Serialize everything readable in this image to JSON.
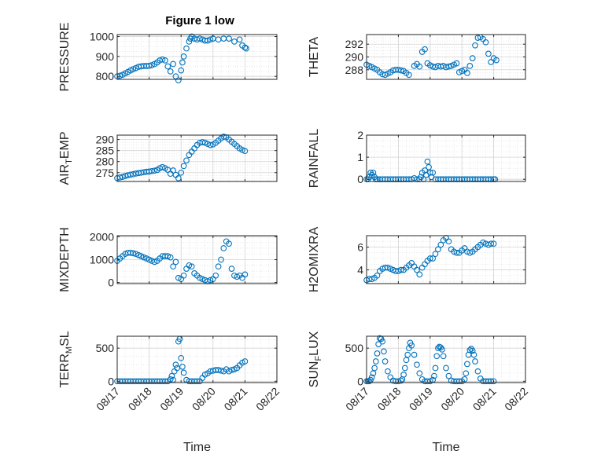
{
  "figure": {
    "title": "Figure 1 low",
    "marker_color": "#0072bd",
    "axis_color": "#262626",
    "grid_color": "#dfdfdf"
  },
  "chart_data": [
    {
      "type": "scatter",
      "id": "pressure",
      "title": "Figure 1 low",
      "ylabel": "PRESSURE",
      "ylabel_sub": "",
      "xlabel": "",
      "ylim": [
        785,
        1010
      ],
      "yticks": [
        800,
        900,
        1000
      ],
      "xticklabels_visible": false,
      "x": [
        "08/17 00:00",
        "08/17 02:00",
        "08/17 04:00",
        "08/17 06:00",
        "08/17 08:00",
        "08/17 10:00",
        "08/17 12:00",
        "08/17 14:00",
        "08/17 16:00",
        "08/17 18:00",
        "08/17 20:00",
        "08/17 22:00",
        "08/18 00:00",
        "08/18 02:00",
        "08/18 04:00",
        "08/18 06:00",
        "08/18 08:00",
        "08/18 10:00",
        "08/18 12:00",
        "08/18 14:00",
        "08/18 16:00",
        "08/18 18:00",
        "08/18 20:00",
        "08/18 22:00",
        "08/19 00:00",
        "08/19 01:00",
        "08/19 02:00",
        "08/19 04:00",
        "08/19 06:00",
        "08/19 07:00",
        "08/19 08:00",
        "08/19 10:00",
        "08/19 12:00",
        "08/19 14:00",
        "08/19 16:00",
        "08/19 18:00",
        "08/19 20:00",
        "08/19 22:00",
        "08/20 00:00",
        "08/20 04:00",
        "08/20 08:00",
        "08/20 12:00",
        "08/20 16:00",
        "08/20 20:00",
        "08/20 22:00",
        "08/21 00:00",
        "08/21 01:00"
      ],
      "values": [
        800,
        803,
        808,
        815,
        822,
        830,
        836,
        842,
        848,
        850,
        852,
        852,
        853,
        856,
        862,
        870,
        880,
        885,
        880,
        850,
        825,
        862,
        800,
        780,
        830,
        870,
        900,
        940,
        975,
        990,
        1000,
        990,
        985,
        990,
        985,
        980,
        980,
        985,
        990,
        985,
        990,
        990,
        975,
        985,
        955,
        945,
        940
      ]
    },
    {
      "type": "scatter",
      "id": "theta",
      "title": "",
      "ylabel": "THETA",
      "ylabel_sub": "",
      "xlabel": "",
      "ylim": [
        286.5,
        293.5
      ],
      "yticks": [
        288,
        290,
        292
      ],
      "xticklabels_visible": false,
      "x": [
        "08/17 00:00",
        "08/17 02:00",
        "08/17 04:00",
        "08/17 06:00",
        "08/17 08:00",
        "08/17 10:00",
        "08/17 12:00",
        "08/17 14:00",
        "08/17 16:00",
        "08/17 18:00",
        "08/17 20:00",
        "08/17 22:00",
        "08/18 00:00",
        "08/18 02:00",
        "08/18 04:00",
        "08/18 06:00",
        "08/18 08:00",
        "08/18 12:00",
        "08/18 14:00",
        "08/18 16:00",
        "08/18 18:00",
        "08/18 20:00",
        "08/18 22:00",
        "08/19 00:00",
        "08/19 02:00",
        "08/19 04:00",
        "08/19 06:00",
        "08/19 08:00",
        "08/19 10:00",
        "08/19 12:00",
        "08/19 14:00",
        "08/19 16:00",
        "08/19 18:00",
        "08/19 20:00",
        "08/19 22:00",
        "08/20 00:00",
        "08/20 02:00",
        "08/20 04:00",
        "08/20 06:00",
        "08/20 08:00",
        "08/20 10:00",
        "08/20 12:00",
        "08/20 14:00",
        "08/20 16:00",
        "08/20 18:00",
        "08/20 20:00",
        "08/20 22:00",
        "08/21 00:00",
        "08/21 02:00"
      ],
      "values": [
        288.8,
        288.6,
        288.4,
        288.2,
        288.0,
        287.6,
        287.3,
        287.2,
        287.4,
        287.6,
        287.9,
        288.0,
        288.0,
        287.9,
        287.8,
        287.5,
        287.2,
        288.6,
        288.9,
        288.5,
        290.8,
        291.2,
        289.0,
        288.7,
        288.5,
        288.4,
        288.6,
        288.5,
        288.6,
        288.4,
        288.5,
        288.6,
        288.8,
        289.0,
        287.6,
        287.8,
        288.0,
        287.5,
        288.6,
        289.8,
        291.8,
        293.0,
        293.1,
        292.8,
        292.3,
        290.5,
        289.2,
        289.8,
        289.5
      ]
    },
    {
      "type": "scatter",
      "id": "air_temp",
      "title": "",
      "ylabel": "AIR",
      "ylabel_sub": "T",
      "ylabel_tail": "EMP",
      "xlabel": "",
      "ylim": [
        271,
        292
      ],
      "yticks": [
        275,
        280,
        285,
        290
      ],
      "xticklabels_visible": false,
      "x": [
        "08/17 00:00",
        "08/17 02:00",
        "08/17 04:00",
        "08/17 06:00",
        "08/17 08:00",
        "08/17 10:00",
        "08/17 12:00",
        "08/17 14:00",
        "08/17 16:00",
        "08/17 18:00",
        "08/17 20:00",
        "08/17 22:00",
        "08/18 00:00",
        "08/18 02:00",
        "08/18 04:00",
        "08/18 06:00",
        "08/18 08:00",
        "08/18 10:00",
        "08/18 12:00",
        "08/18 14:00",
        "08/18 16:00",
        "08/18 18:00",
        "08/18 20:00",
        "08/18 22:00",
        "08/19 00:00",
        "08/19 02:00",
        "08/19 04:00",
        "08/19 06:00",
        "08/19 08:00",
        "08/19 10:00",
        "08/19 12:00",
        "08/19 14:00",
        "08/19 16:00",
        "08/19 18:00",
        "08/19 20:00",
        "08/19 22:00",
        "08/20 00:00",
        "08/20 02:00",
        "08/20 04:00",
        "08/20 06:00",
        "08/20 08:00",
        "08/20 10:00",
        "08/20 12:00",
        "08/20 14:00",
        "08/20 16:00",
        "08/20 18:00",
        "08/20 20:00",
        "08/20 22:00",
        "08/21 00:00"
      ],
      "values": [
        272.5,
        272.8,
        273.1,
        273.5,
        273.8,
        274.1,
        274.3,
        274.6,
        274.8,
        275.0,
        275.2,
        275.4,
        275.5,
        275.7,
        275.9,
        276.2,
        277.0,
        277.5,
        277.0,
        276.3,
        274.5,
        276.0,
        274.0,
        272.5,
        275.0,
        278.0,
        280.5,
        283.0,
        284.5,
        286.0,
        287.5,
        288.5,
        288.8,
        288.6,
        288.0,
        287.5,
        287.8,
        288.5,
        289.5,
        290.5,
        291.3,
        291.0,
        290.0,
        289.0,
        288.0,
        287.0,
        286.0,
        285.3,
        284.8
      ]
    },
    {
      "type": "scatter",
      "id": "rainfall",
      "title": "",
      "ylabel": "RAINFALL",
      "ylabel_sub": "",
      "xlabel": "",
      "ylim": [
        -0.1,
        2.0
      ],
      "yticks": [
        0,
        1,
        2
      ],
      "xticklabels_visible": false,
      "x": [
        "08/17 00:00",
        "08/17 01:00",
        "08/17 02:00",
        "08/17 03:00",
        "08/17 04:00",
        "08/17 05:00",
        "08/17 06:00",
        "08/17 07:00",
        "08/17 08:00",
        "08/17 10:00",
        "08/17 12:00",
        "08/17 14:00",
        "08/17 16:00",
        "08/17 18:00",
        "08/17 20:00",
        "08/17 22:00",
        "08/18 00:00",
        "08/18 02:00",
        "08/18 04:00",
        "08/18 06:00",
        "08/18 08:00",
        "08/18 10:00",
        "08/18 12:00",
        "08/18 14:00",
        "08/18 16:00",
        "08/18 17:00",
        "08/18 18:00",
        "08/18 19:00",
        "08/18 20:00",
        "08/18 21:00",
        "08/18 22:00",
        "08/18 23:00",
        "08/19 00:00",
        "08/19 01:00",
        "08/19 02:00",
        "08/19 04:00",
        "08/19 06:00",
        "08/19 08:00",
        "08/19 10:00",
        "08/19 12:00",
        "08/19 14:00",
        "08/19 16:00",
        "08/19 18:00",
        "08/19 20:00",
        "08/19 22:00",
        "08/20 00:00",
        "08/20 02:00",
        "08/20 04:00",
        "08/20 06:00",
        "08/20 08:00",
        "08/20 10:00",
        "08/20 12:00",
        "08/20 14:00",
        "08/20 16:00",
        "08/20 18:00",
        "08/20 20:00",
        "08/20 22:00",
        "08/21 00:00",
        "08/21 01:00"
      ],
      "values": [
        0,
        0,
        0.1,
        0.3,
        0.2,
        0.3,
        0.1,
        0,
        0,
        0,
        0,
        0,
        0,
        0,
        0,
        0,
        0,
        0,
        0,
        0,
        0,
        0,
        0.05,
        0,
        0,
        0.1,
        0.3,
        0,
        0.4,
        0.2,
        0.8,
        0.55,
        0.3,
        0.1,
        0.3,
        0,
        0,
        0,
        0,
        0,
        0,
        0,
        0,
        0,
        0,
        0,
        0,
        0,
        0,
        0,
        0,
        0,
        0,
        0,
        0,
        0,
        0,
        0,
        0
      ]
    },
    {
      "type": "scatter",
      "id": "mixdepth",
      "title": "",
      "ylabel": "MIXDEPTH",
      "ylabel_sub": "",
      "xlabel": "",
      "ylim": [
        -50,
        2050
      ],
      "yticks": [
        0,
        1000,
        2000
      ],
      "xticklabels_visible": false,
      "x": [
        "08/17 00:00",
        "08/17 02:00",
        "08/17 04:00",
        "08/17 06:00",
        "08/17 08:00",
        "08/17 10:00",
        "08/17 12:00",
        "08/17 14:00",
        "08/17 16:00",
        "08/17 18:00",
        "08/17 20:00",
        "08/17 22:00",
        "08/18 00:00",
        "08/18 02:00",
        "08/18 04:00",
        "08/18 06:00",
        "08/18 08:00",
        "08/18 10:00",
        "08/18 12:00",
        "08/18 14:00",
        "08/18 16:00",
        "08/18 18:00",
        "08/18 20:00",
        "08/18 22:00",
        "08/19 00:00",
        "08/19 02:00",
        "08/19 04:00",
        "08/19 06:00",
        "08/19 08:00",
        "08/19 10:00",
        "08/19 12:00",
        "08/19 14:00",
        "08/19 16:00",
        "08/19 18:00",
        "08/19 20:00",
        "08/19 22:00",
        "08/20 00:00",
        "08/20 02:00",
        "08/20 04:00",
        "08/20 06:00",
        "08/20 08:00",
        "08/20 10:00",
        "08/20 12:00",
        "08/20 14:00",
        "08/20 16:00",
        "08/20 18:00",
        "08/20 20:00",
        "08/20 22:00",
        "08/21 00:00"
      ],
      "values": [
        950,
        1050,
        1150,
        1250,
        1300,
        1300,
        1280,
        1250,
        1200,
        1150,
        1100,
        1050,
        1000,
        950,
        900,
        950,
        1050,
        1150,
        1150,
        1150,
        1100,
        700,
        900,
        200,
        150,
        300,
        600,
        750,
        700,
        400,
        300,
        200,
        150,
        100,
        50,
        100,
        150,
        300,
        700,
        1000,
        1500,
        1800,
        1700,
        600,
        300,
        250,
        300,
        200,
        350
      ]
    },
    {
      "type": "scatter",
      "id": "h2omixra",
      "title": "",
      "ylabel": "H2OMIXRA",
      "ylabel_sub": "",
      "xlabel": "",
      "ylim": [
        2.8,
        7.0
      ],
      "yticks": [
        4,
        6
      ],
      "xticklabels_visible": false,
      "x": [
        "08/17 00:00",
        "08/17 02:00",
        "08/17 04:00",
        "08/17 06:00",
        "08/17 08:00",
        "08/17 10:00",
        "08/17 12:00",
        "08/17 14:00",
        "08/17 16:00",
        "08/17 18:00",
        "08/17 20:00",
        "08/17 22:00",
        "08/18 00:00",
        "08/18 02:00",
        "08/18 04:00",
        "08/18 06:00",
        "08/18 08:00",
        "08/18 10:00",
        "08/18 12:00",
        "08/18 14:00",
        "08/18 16:00",
        "08/18 18:00",
        "08/18 20:00",
        "08/18 22:00",
        "08/19 00:00",
        "08/19 02:00",
        "08/19 04:00",
        "08/19 06:00",
        "08/19 08:00",
        "08/19 10:00",
        "08/19 12:00",
        "08/19 14:00",
        "08/19 16:00",
        "08/19 18:00",
        "08/19 20:00",
        "08/19 22:00",
        "08/20 00:00",
        "08/20 02:00",
        "08/20 04:00",
        "08/20 06:00",
        "08/20 08:00",
        "08/20 10:00",
        "08/20 12:00",
        "08/20 14:00",
        "08/20 16:00",
        "08/20 18:00",
        "08/20 20:00",
        "08/20 22:00",
        "08/21 00:00"
      ],
      "values": [
        3.1,
        3.2,
        3.2,
        3.3,
        3.5,
        3.9,
        4.1,
        4.2,
        4.2,
        4.1,
        4.0,
        3.9,
        3.9,
        4.0,
        4.0,
        4.2,
        4.4,
        4.6,
        4.3,
        4.0,
        3.6,
        4.2,
        4.5,
        4.8,
        5.0,
        5.0,
        5.4,
        5.8,
        6.2,
        6.6,
        6.8,
        6.5,
        5.8,
        5.6,
        5.5,
        5.5,
        5.7,
        5.9,
        5.6,
        5.5,
        5.6,
        5.8,
        6.0,
        6.2,
        6.4,
        6.3,
        6.2,
        6.3,
        6.3
      ]
    },
    {
      "type": "scatter",
      "id": "terr_msl",
      "title": "",
      "ylabel": "TERR",
      "ylabel_sub": "M",
      "ylabel_tail": "SL",
      "xlabel": "Time",
      "ylim": [
        -20,
        680
      ],
      "yticks": [
        0,
        500
      ],
      "xticklabels_visible": true,
      "x": [
        "08/17 00:00",
        "08/17 02:00",
        "08/17 04:00",
        "08/17 06:00",
        "08/17 08:00",
        "08/17 10:00",
        "08/17 12:00",
        "08/17 14:00",
        "08/17 16:00",
        "08/17 18:00",
        "08/17 20:00",
        "08/17 22:00",
        "08/18 00:00",
        "08/18 02:00",
        "08/18 04:00",
        "08/18 06:00",
        "08/18 08:00",
        "08/18 10:00",
        "08/18 12:00",
        "08/18 14:00",
        "08/18 16:00",
        "08/18 17:00",
        "08/18 18:00",
        "08/18 19:00",
        "08/18 20:00",
        "08/18 21:00",
        "08/18 22:00",
        "08/18 23:00",
        "08/19 00:00",
        "08/19 01:00",
        "08/19 02:00",
        "08/19 04:00",
        "08/19 06:00",
        "08/19 08:00",
        "08/19 10:00",
        "08/19 12:00",
        "08/19 14:00",
        "08/19 16:00",
        "08/19 18:00",
        "08/19 20:00",
        "08/19 22:00",
        "08/20 00:00",
        "08/20 02:00",
        "08/20 04:00",
        "08/20 06:00",
        "08/20 08:00",
        "08/20 10:00",
        "08/20 12:00",
        "08/20 14:00",
        "08/20 16:00",
        "08/20 18:00",
        "08/20 20:00",
        "08/20 22:00",
        "08/21 00:00"
      ],
      "values": [
        0,
        0,
        0,
        0,
        0,
        0,
        0,
        0,
        0,
        0,
        0,
        0,
        0,
        0,
        0,
        0,
        0,
        0,
        0,
        0,
        30,
        80,
        20,
        150,
        250,
        200,
        600,
        640,
        350,
        220,
        130,
        20,
        0,
        0,
        0,
        0,
        0,
        50,
        100,
        120,
        150,
        160,
        170,
        170,
        160,
        150,
        180,
        150,
        170,
        180,
        200,
        240,
        280,
        300
      ]
    },
    {
      "type": "scatter",
      "id": "sun_flux",
      "title": "",
      "ylabel": "SUN",
      "ylabel_sub": "F",
      "ylabel_tail": "LUX",
      "xlabel": "Time",
      "ylim": [
        -20,
        680
      ],
      "yticks": [
        0,
        500
      ],
      "xticklabels_visible": true,
      "x": [
        "08/17 00:00",
        "08/17 01:00",
        "08/17 02:00",
        "08/17 03:00",
        "08/17 04:00",
        "08/17 05:00",
        "08/17 06:00",
        "08/17 07:00",
        "08/17 08:00",
        "08/17 09:00",
        "08/17 10:00",
        "08/17 11:00",
        "08/17 12:00",
        "08/17 13:00",
        "08/17 14:00",
        "08/17 16:00",
        "08/17 18:00",
        "08/17 20:00",
        "08/17 22:00",
        "08/18 00:00",
        "08/18 02:00",
        "08/18 03:00",
        "08/18 04:00",
        "08/18 05:00",
        "08/18 06:00",
        "08/18 07:00",
        "08/18 08:00",
        "08/18 09:00",
        "08/18 10:00",
        "08/18 12:00",
        "08/18 14:00",
        "08/18 16:00",
        "08/18 18:00",
        "08/18 20:00",
        "08/18 22:00",
        "08/19 00:00",
        "08/19 02:00",
        "08/19 03:00",
        "08/19 04:00",
        "08/19 05:00",
        "08/19 06:00",
        "08/19 07:00",
        "08/19 08:00",
        "08/19 09:00",
        "08/19 10:00",
        "08/19 12:00",
        "08/19 14:00",
        "08/19 16:00",
        "08/19 18:00",
        "08/19 20:00",
        "08/19 22:00",
        "08/20 00:00",
        "08/20 02:00",
        "08/20 03:00",
        "08/20 04:00",
        "08/20 05:00",
        "08/20 06:00",
        "08/20 07:00",
        "08/20 08:00",
        "08/20 09:00",
        "08/20 10:00",
        "08/20 12:00",
        "08/20 14:00",
        "08/20 16:00",
        "08/20 18:00",
        "08/20 20:00",
        "08/20 22:00",
        "08/21 00:00"
      ],
      "values": [
        0,
        0,
        0,
        20,
        60,
        120,
        200,
        300,
        420,
        560,
        650,
        640,
        600,
        450,
        300,
        150,
        60,
        10,
        0,
        0,
        10,
        30,
        100,
        200,
        320,
        400,
        500,
        580,
        540,
        400,
        250,
        120,
        30,
        0,
        0,
        0,
        20,
        80,
        200,
        380,
        500,
        520,
        510,
        480,
        380,
        200,
        80,
        10,
        0,
        0,
        0,
        0,
        30,
        120,
        260,
        400,
        470,
        490,
        460,
        400,
        300,
        150,
        40,
        0,
        0,
        0,
        0,
        0
      ]
    }
  ],
  "x_axis": {
    "range": [
      "08/17 00:00",
      "08/22 00:00"
    ],
    "ticks": [
      "08/17",
      "08/18",
      "08/19",
      "08/20",
      "08/21",
      "08/22"
    ],
    "label": "Time"
  }
}
